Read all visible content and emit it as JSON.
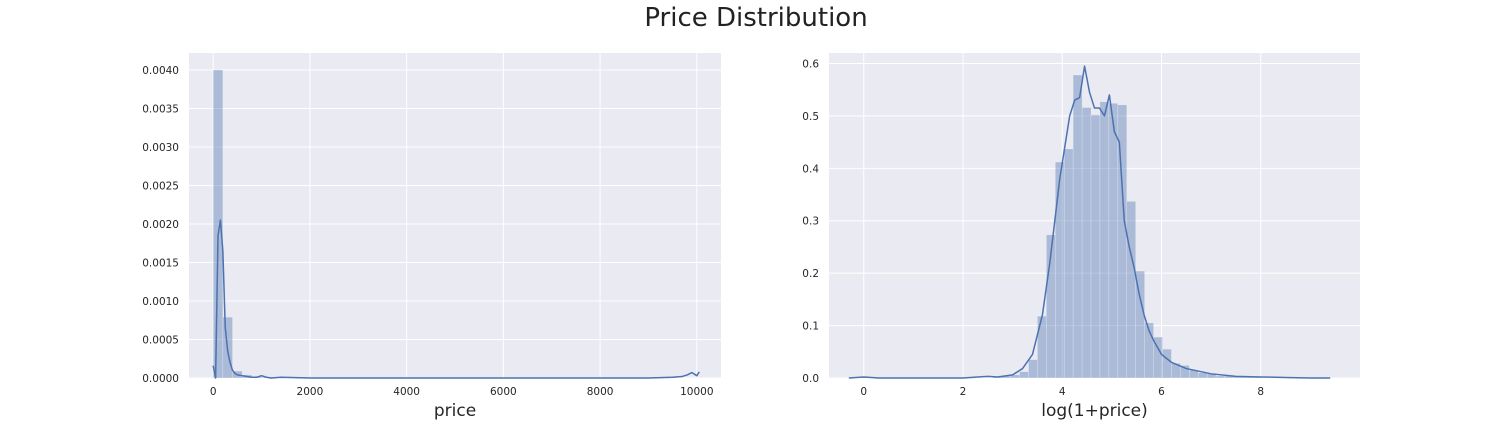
{
  "figure_title": "Price Distribution",
  "colors": {
    "background": "#EAEAF2",
    "grid": "#FFFFFF",
    "bar": "#4C72B0",
    "line": "#4C72B0"
  },
  "chart_data": [
    {
      "type": "bar",
      "subtype": "histogram_with_kde",
      "title": "",
      "xlabel": "price",
      "ylabel": "",
      "xlim": [
        -500,
        10500
      ],
      "ylim": [
        0,
        0.00422
      ],
      "xticks": [
        0,
        2000,
        4000,
        6000,
        8000,
        10000
      ],
      "xtick_labels": [
        "0",
        "2000",
        "4000",
        "6000",
        "8000",
        "10000"
      ],
      "yticks": [
        0,
        0.0005,
        0.001,
        0.0015,
        0.002,
        0.0025,
        0.003,
        0.0035,
        0.004
      ],
      "ytick_labels": [
        "0.0000",
        "0.0005",
        "0.0010",
        "0.0015",
        "0.0020",
        "0.0025",
        "0.0030",
        "0.0035",
        "0.0040"
      ],
      "grid": true,
      "bins": [
        {
          "x0": 0,
          "x1": 200,
          "value": 0.004
        },
        {
          "x0": 200,
          "x1": 400,
          "value": 0.00079
        },
        {
          "x0": 400,
          "x1": 600,
          "value": 9e-05
        },
        {
          "x0": 600,
          "x1": 800,
          "value": 4e-05
        },
        {
          "x0": 800,
          "x1": 1000,
          "value": 2e-05
        },
        {
          "x0": 1000,
          "x1": 1200,
          "value": 1e-05
        }
      ],
      "kde": {
        "x": [
          0,
          50,
          100,
          150,
          200,
          250,
          300,
          350,
          400,
          450,
          500,
          600,
          700,
          800,
          900,
          1000,
          1100,
          1200,
          1400,
          2000,
          3000,
          4000,
          5000,
          6000,
          7000,
          8000,
          9000,
          9500,
          9700,
          9800,
          9900,
          10000,
          10050
        ],
        "y": [
          0.00016,
          0,
          0.00185,
          0.00205,
          0.00165,
          0.00065,
          0.00035,
          0.0002,
          0.0001,
          6e-05,
          4e-05,
          3e-05,
          2e-05,
          1e-05,
          1e-05,
          3e-05,
          1e-05,
          0.0,
          1e-05,
          0.0,
          0.0,
          0.0,
          0.0,
          0.0,
          0.0,
          0.0,
          0.0,
          1e-05,
          2e-05,
          4e-05,
          7e-05,
          3e-05,
          8e-05
        ]
      }
    },
    {
      "type": "bar",
      "subtype": "histogram_with_kde",
      "title": "",
      "xlabel": "log(1+price)",
      "ylabel": "",
      "xlim": [
        -0.7,
        10
      ],
      "ylim": [
        0,
        0.62
      ],
      "xticks": [
        0,
        2,
        4,
        6,
        8
      ],
      "xtick_labels": [
        "0",
        "2",
        "4",
        "6",
        "8"
      ],
      "yticks": [
        0,
        0.1,
        0.2,
        0.3,
        0.4,
        0.5,
        0.6
      ],
      "ytick_labels": [
        "0.0",
        "0.1",
        "0.2",
        "0.3",
        "0.4",
        "0.5",
        "0.6"
      ],
      "grid": true,
      "bins": [
        {
          "x0": 2.6,
          "x1": 2.78,
          "value": 0.003
        },
        {
          "x0": 2.78,
          "x1": 2.96,
          "value": 0.004
        },
        {
          "x0": 2.96,
          "x1": 3.14,
          "value": 0.006
        },
        {
          "x0": 3.14,
          "x1": 3.32,
          "value": 0.012
        },
        {
          "x0": 3.32,
          "x1": 3.5,
          "value": 0.035
        },
        {
          "x0": 3.5,
          "x1": 3.68,
          "value": 0.118
        },
        {
          "x0": 3.68,
          "x1": 3.86,
          "value": 0.273
        },
        {
          "x0": 3.86,
          "x1": 4.04,
          "value": 0.412
        },
        {
          "x0": 4.04,
          "x1": 4.22,
          "value": 0.437
        },
        {
          "x0": 4.22,
          "x1": 4.4,
          "value": 0.578
        },
        {
          "x0": 4.4,
          "x1": 4.58,
          "value": 0.516
        },
        {
          "x0": 4.58,
          "x1": 4.76,
          "value": 0.502
        },
        {
          "x0": 4.76,
          "x1": 4.94,
          "value": 0.527
        },
        {
          "x0": 4.94,
          "x1": 5.12,
          "value": 0.524
        },
        {
          "x0": 5.12,
          "x1": 5.3,
          "value": 0.521
        },
        {
          "x0": 5.3,
          "x1": 5.48,
          "value": 0.337
        },
        {
          "x0": 5.48,
          "x1": 5.66,
          "value": 0.204
        },
        {
          "x0": 5.66,
          "x1": 5.84,
          "value": 0.105
        },
        {
          "x0": 5.84,
          "x1": 6.02,
          "value": 0.078
        },
        {
          "x0": 6.02,
          "x1": 6.2,
          "value": 0.055
        },
        {
          "x0": 6.2,
          "x1": 6.38,
          "value": 0.028
        },
        {
          "x0": 6.38,
          "x1": 6.56,
          "value": 0.024
        },
        {
          "x0": 6.56,
          "x1": 6.74,
          "value": 0.015
        },
        {
          "x0": 6.74,
          "x1": 6.92,
          "value": 0.01
        },
        {
          "x0": 6.92,
          "x1": 7.1,
          "value": 0.008
        },
        {
          "x0": 7.1,
          "x1": 7.28,
          "value": 0.004
        },
        {
          "x0": 7.28,
          "x1": 7.46,
          "value": 0.004
        },
        {
          "x0": 7.46,
          "x1": 7.64,
          "value": 0.004
        },
        {
          "x0": 7.64,
          "x1": 7.82,
          "value": 0.002
        },
        {
          "x0": 7.82,
          "x1": 8.0,
          "value": 0.002
        }
      ],
      "kde": {
        "x": [
          -0.3,
          0,
          0.3,
          1,
          2,
          2.3,
          2.5,
          2.7,
          3.0,
          3.2,
          3.4,
          3.6,
          3.75,
          3.85,
          3.95,
          4.05,
          4.15,
          4.25,
          4.35,
          4.45,
          4.55,
          4.65,
          4.75,
          4.85,
          4.95,
          5.05,
          5.15,
          5.25,
          5.35,
          5.45,
          5.55,
          5.65,
          5.75,
          5.85,
          6.0,
          6.2,
          6.5,
          7.0,
          7.5,
          8.0,
          8.5,
          9.0,
          9.4
        ],
        "y": [
          0.0,
          0.002,
          0.0,
          0.0,
          0.0,
          0.002,
          0.003,
          0.002,
          0.006,
          0.018,
          0.045,
          0.12,
          0.22,
          0.3,
          0.38,
          0.44,
          0.5,
          0.53,
          0.535,
          0.595,
          0.545,
          0.515,
          0.515,
          0.5,
          0.54,
          0.47,
          0.45,
          0.3,
          0.25,
          0.21,
          0.16,
          0.12,
          0.09,
          0.07,
          0.045,
          0.03,
          0.018,
          0.008,
          0.003,
          0.002,
          0.001,
          0.0,
          0.0
        ]
      }
    }
  ]
}
